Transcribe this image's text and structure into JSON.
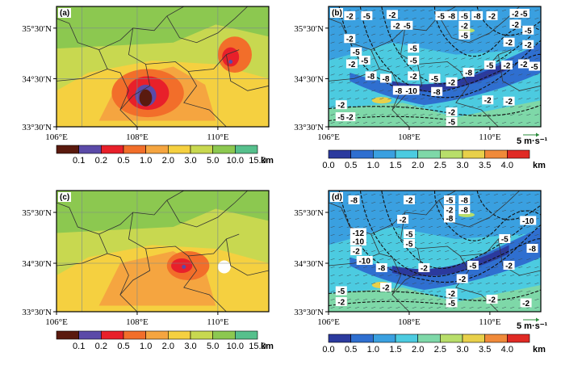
{
  "chart_data": [
    {
      "type": "heatmap",
      "panel_label": "(a)",
      "x_ticks": [
        "106°E",
        "108°E",
        "110°E"
      ],
      "y_ticks": [
        "35°30′N",
        "34°30′N",
        "33°30′N"
      ],
      "colorbar": {
        "ticks": [
          "0.1",
          "0.2",
          "0.5",
          "1.0",
          "2.0",
          "3.0",
          "5.0",
          "10.0",
          "15.0"
        ],
        "unit": "km",
        "colors": [
          "#5a1a0e",
          "#5b4aa8",
          "#e8202a",
          "#f26e2a",
          "#f5a540",
          "#f5d040",
          "#c8d850",
          "#8cc850",
          "#56c08c"
        ]
      }
    },
    {
      "type": "heatmap",
      "panel_label": "(b)",
      "x_ticks": [
        "106°E",
        "108°E",
        "110°E"
      ],
      "y_ticks": [
        "35°30′N",
        "34°30′N",
        "33°30′N"
      ],
      "contour_labels": [
        "-2",
        "-5",
        "-2",
        "-2",
        "-5",
        "-5",
        "-8",
        "-5",
        "-8",
        "-2",
        "-2",
        "-5",
        "-2",
        "-5",
        "-2",
        "-5",
        "-5",
        "-5",
        "-2",
        "-5",
        "-2",
        "-2",
        "-5",
        "-2",
        "-8",
        "-8",
        "-2",
        "-5",
        "-2",
        "-8",
        "-5",
        "-2",
        "-2",
        "-5",
        "-8",
        "-10",
        "-8",
        "-2",
        "-2",
        "-2",
        "-5",
        "-2",
        "-2",
        "-5"
      ],
      "vector_reference": "5 m·s⁻¹",
      "colorbar": {
        "ticks": [
          "0.0",
          "0.5",
          "1.0",
          "1.5",
          "2.0",
          "2.5",
          "3.0",
          "3.5",
          "4.0"
        ],
        "unit": "km",
        "colors": [
          "#2b3a9e",
          "#2f6fd0",
          "#3aa0e0",
          "#4ccbe0",
          "#7ed8a8",
          "#b8de6a",
          "#e8d04a",
          "#f08a3a",
          "#e02a24"
        ]
      }
    },
    {
      "type": "heatmap",
      "panel_label": "(c)",
      "x_ticks": [
        "106°E",
        "108°E",
        "110°E"
      ],
      "y_ticks": [
        "35°30′N",
        "34°30′N",
        "33°30′N"
      ],
      "colorbar": {
        "ticks": [
          "0.1",
          "0.2",
          "0.5",
          "1.0",
          "2.0",
          "3.0",
          "5.0",
          "10.0",
          "15.0"
        ],
        "unit": "km",
        "colors": [
          "#5a1a0e",
          "#5b4aa8",
          "#e8202a",
          "#f26e2a",
          "#f5a540",
          "#f5d040",
          "#c8d850",
          "#8cc850",
          "#56c08c"
        ]
      }
    },
    {
      "type": "heatmap",
      "panel_label": "(d)",
      "x_ticks": [
        "106°E",
        "108°E",
        "110°E"
      ],
      "y_ticks": [
        "35°30′N",
        "34°30′N",
        "33°30′N"
      ],
      "contour_labels": [
        "-8",
        "-2",
        "-5",
        "-8",
        "-8",
        "-12",
        "-2",
        "-5",
        "-8",
        "-10",
        "-5",
        "-2",
        "-2",
        "-5",
        "-10",
        "-8",
        "-2",
        "-10",
        "-8",
        "-2",
        "-5",
        "-2",
        "-2",
        "-5",
        "-2",
        "-2",
        "-5",
        "-2",
        "-2"
      ],
      "vector_reference": "5 m·s⁻¹",
      "colorbar": {
        "ticks": [
          "0.0",
          "0.5",
          "1.0",
          "1.5",
          "2.0",
          "2.5",
          "3.0",
          "3.5",
          "4.0"
        ],
        "unit": "km",
        "colors": [
          "#2b3a9e",
          "#2f6fd0",
          "#3aa0e0",
          "#4ccbe0",
          "#7ed8a8",
          "#b8de6a",
          "#e8d04a",
          "#f08a3a",
          "#e02a24"
        ]
      }
    }
  ]
}
